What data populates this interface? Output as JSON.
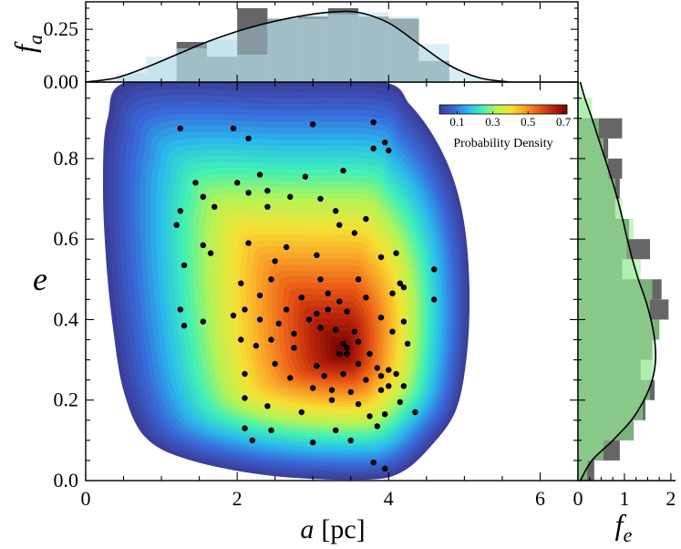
{
  "chart_data": [
    {
      "name": "joint-density",
      "type": "heatmap",
      "xlabel_main": "a",
      "xlabel_unit": "[pc]",
      "ylabel": "e",
      "xlim": [
        0,
        6.5
      ],
      "ylim": [
        0,
        0.99
      ],
      "xticks": [
        0,
        2,
        4,
        6
      ],
      "xtick_labels": [
        "0",
        "2",
        "4",
        "6"
      ],
      "yticks": [
        0.0,
        0.2,
        0.4,
        0.6,
        0.8
      ],
      "ytick_labels": [
        "0.0",
        "0.2",
        "0.4",
        "0.6",
        "0.8"
      ],
      "density_peak": {
        "a": 3.4,
        "e": 0.32
      },
      "colorbar": {
        "label": "Probability Density",
        "range": [
          0.0,
          0.72
        ],
        "ticks": [
          0.1,
          0.3,
          0.5,
          0.7
        ],
        "tick_labels": [
          "0.1",
          "0.3",
          "0.5",
          "0.7"
        ],
        "colors": [
          "#3b3f9a",
          "#3a67d8",
          "#2ab6ee",
          "#3ef0b8",
          "#b5f455",
          "#f6e134",
          "#f9a227",
          "#ea5a17",
          "#b9240a",
          "#7a0403"
        ],
        "placement": "top-right inside"
      },
      "points": [
        [
          3.8,
          0.89
        ],
        [
          1.25,
          0.875
        ],
        [
          1.95,
          0.875
        ],
        [
          3.0,
          0.885
        ],
        [
          2.15,
          0.85
        ],
        [
          3.95,
          0.84
        ],
        [
          4.0,
          0.82
        ],
        [
          3.8,
          0.825
        ],
        [
          3.4,
          0.77
        ],
        [
          2.3,
          0.76
        ],
        [
          2.9,
          0.755
        ],
        [
          1.45,
          0.74
        ],
        [
          2.0,
          0.74
        ],
        [
          1.55,
          0.705
        ],
        [
          2.15,
          0.715
        ],
        [
          2.4,
          0.72
        ],
        [
          2.7,
          0.705
        ],
        [
          3.1,
          0.7
        ],
        [
          1.7,
          0.68
        ],
        [
          2.4,
          0.68
        ],
        [
          1.25,
          0.67
        ],
        [
          3.3,
          0.67
        ],
        [
          1.2,
          0.635
        ],
        [
          3.7,
          0.65
        ],
        [
          3.35,
          0.635
        ],
        [
          3.55,
          0.615
        ],
        [
          2.15,
          0.59
        ],
        [
          1.55,
          0.585
        ],
        [
          2.65,
          0.58
        ],
        [
          1.65,
          0.565
        ],
        [
          3.05,
          0.56
        ],
        [
          4.1,
          0.565
        ],
        [
          1.3,
          0.535
        ],
        [
          2.5,
          0.545
        ],
        [
          3.9,
          0.555
        ],
        [
          4.6,
          0.525
        ],
        [
          2.05,
          0.49
        ],
        [
          2.45,
          0.5
        ],
        [
          3.1,
          0.5
        ],
        [
          3.6,
          0.5
        ],
        [
          4.15,
          0.49
        ],
        [
          4.2,
          0.48
        ],
        [
          2.3,
          0.46
        ],
        [
          2.85,
          0.455
        ],
        [
          3.2,
          0.465
        ],
        [
          2.1,
          0.425
        ],
        [
          2.65,
          0.425
        ],
        [
          3.35,
          0.445
        ],
        [
          3.7,
          0.455
        ],
        [
          4.05,
          0.465
        ],
        [
          4.6,
          0.45
        ],
        [
          1.25,
          0.425
        ],
        [
          1.55,
          0.395
        ],
        [
          1.3,
          0.385
        ],
        [
          1.95,
          0.41
        ],
        [
          2.3,
          0.4
        ],
        [
          2.55,
          0.39
        ],
        [
          2.95,
          0.4
        ],
        [
          3.05,
          0.415
        ],
        [
          3.2,
          0.425
        ],
        [
          3.45,
          0.42
        ],
        [
          3.9,
          0.405
        ],
        [
          4.2,
          0.395
        ],
        [
          2.05,
          0.35
        ],
        [
          2.45,
          0.35
        ],
        [
          2.75,
          0.365
        ],
        [
          3.1,
          0.38
        ],
        [
          3.3,
          0.375
        ],
        [
          3.55,
          0.37
        ],
        [
          4.05,
          0.37
        ],
        [
          3.4,
          0.34
        ],
        [
          3.45,
          0.33
        ],
        [
          3.6,
          0.345
        ],
        [
          4.25,
          0.34
        ],
        [
          2.25,
          0.335
        ],
        [
          2.75,
          0.33
        ],
        [
          3.35,
          0.315
        ],
        [
          3.45,
          0.315
        ],
        [
          3.75,
          0.315
        ],
        [
          2.5,
          0.29
        ],
        [
          3.05,
          0.285
        ],
        [
          3.6,
          0.29
        ],
        [
          3.85,
          0.28
        ],
        [
          4.0,
          0.275
        ],
        [
          2.1,
          0.265
        ],
        [
          2.7,
          0.255
        ],
        [
          3.15,
          0.26
        ],
        [
          3.4,
          0.265
        ],
        [
          3.7,
          0.25
        ],
        [
          3.9,
          0.26
        ],
        [
          4.1,
          0.265
        ],
        [
          4.2,
          0.235
        ],
        [
          3.0,
          0.23
        ],
        [
          3.25,
          0.225
        ],
        [
          3.5,
          0.22
        ],
        [
          3.9,
          0.225
        ],
        [
          4.0,
          0.235
        ],
        [
          2.1,
          0.205
        ],
        [
          2.4,
          0.185
        ],
        [
          3.25,
          0.2
        ],
        [
          3.6,
          0.19
        ],
        [
          4.15,
          0.195
        ],
        [
          2.85,
          0.17
        ],
        [
          3.75,
          0.16
        ],
        [
          3.95,
          0.165
        ],
        [
          4.35,
          0.17
        ],
        [
          2.1,
          0.13
        ],
        [
          2.45,
          0.125
        ],
        [
          3.3,
          0.125
        ],
        [
          3.85,
          0.135
        ],
        [
          2.2,
          0.1
        ],
        [
          3.0,
          0.095
        ],
        [
          3.5,
          0.1
        ],
        [
          3.8,
          0.045
        ],
        [
          3.95,
          0.03
        ]
      ]
    },
    {
      "name": "marginal-a",
      "type": "bar",
      "ylabel": "f_a",
      "ylabel_main": "f",
      "ylabel_sub": "a",
      "ylim": [
        0,
        0.38
      ],
      "yticks": [
        0.0,
        0.25
      ],
      "ytick_labels": [
        "0.00",
        "0.25"
      ],
      "series": [
        {
          "name": "histogram-dark",
          "bin_edges": [
            1.2,
            1.6,
            2.0,
            2.4,
            2.8,
            3.2,
            3.6,
            4.0,
            4.4,
            4.8
          ],
          "values": [
            0.19,
            0.12,
            0.35,
            0.3,
            0.31,
            0.35,
            0.31,
            0.3,
            0.1
          ]
        },
        {
          "name": "histogram-light",
          "bin_edges": [
            0.4,
            0.8,
            1.2,
            1.6,
            2.0,
            2.4,
            2.8,
            3.2,
            3.6,
            4.0,
            4.4,
            4.8
          ],
          "values": [
            0.04,
            0.12,
            0.16,
            0.2,
            0.13,
            0.3,
            0.3,
            0.32,
            0.33,
            0.31,
            0.18
          ]
        },
        {
          "name": "kde",
          "x": [
            0.0,
            0.4,
            0.8,
            1.2,
            1.6,
            2.0,
            2.4,
            2.8,
            3.2,
            3.6,
            4.0,
            4.4,
            4.8,
            5.2,
            5.6
          ],
          "values": [
            0.0,
            0.02,
            0.07,
            0.13,
            0.19,
            0.24,
            0.28,
            0.31,
            0.33,
            0.33,
            0.28,
            0.18,
            0.08,
            0.02,
            0.0
          ]
        }
      ]
    },
    {
      "name": "marginal-e",
      "type": "bar",
      "xlabel": "f_e",
      "xlabel_main": "f",
      "xlabel_sub": "e",
      "xlim": [
        0,
        2.1
      ],
      "xticks": [
        0,
        1,
        2
      ],
      "xtick_labels": [
        "0",
        "1",
        "2"
      ],
      "series": [
        {
          "name": "histogram-dark",
          "bin_edges": [
            0.0,
            0.05,
            0.1,
            0.15,
            0.2,
            0.25,
            0.3,
            0.35,
            0.4,
            0.45,
            0.5,
            0.55,
            0.6,
            0.65,
            0.7,
            0.75,
            0.8,
            0.85,
            0.9
          ],
          "values": [
            0.35,
            0.9,
            1.2,
            1.45,
            1.65,
            1.35,
            1.6,
            1.75,
            1.95,
            1.8,
            0.95,
            1.55,
            1.1,
            0.8,
            0.9,
            0.95,
            0.65,
            0.95
          ]
        },
        {
          "name": "histogram-light",
          "bin_edges": [
            0.0,
            0.05,
            0.1,
            0.15,
            0.2,
            0.25,
            0.3,
            0.35,
            0.4,
            0.45,
            0.5,
            0.55,
            0.6,
            0.65,
            0.7,
            0.75,
            0.8,
            0.85,
            0.9,
            0.95
          ],
          "values": [
            0.2,
            0.55,
            1.2,
            1.4,
            1.55,
            1.6,
            1.6,
            1.75,
            1.55,
            1.6,
            1.35,
            1.05,
            1.2,
            0.95,
            0.8,
            0.65,
            0.55,
            0.45,
            0.3
          ]
        },
        {
          "name": "kde",
          "e": [
            0.0,
            0.05,
            0.1,
            0.15,
            0.2,
            0.25,
            0.3,
            0.35,
            0.4,
            0.45,
            0.5,
            0.55,
            0.6,
            0.65,
            0.7,
            0.75,
            0.8,
            0.85,
            0.9,
            0.95,
            0.99
          ],
          "values": [
            0.05,
            0.3,
            0.75,
            1.15,
            1.42,
            1.6,
            1.67,
            1.65,
            1.57,
            1.45,
            1.3,
            1.17,
            1.06,
            0.96,
            0.85,
            0.72,
            0.58,
            0.44,
            0.3,
            0.15,
            0.05
          ]
        }
      ]
    }
  ]
}
